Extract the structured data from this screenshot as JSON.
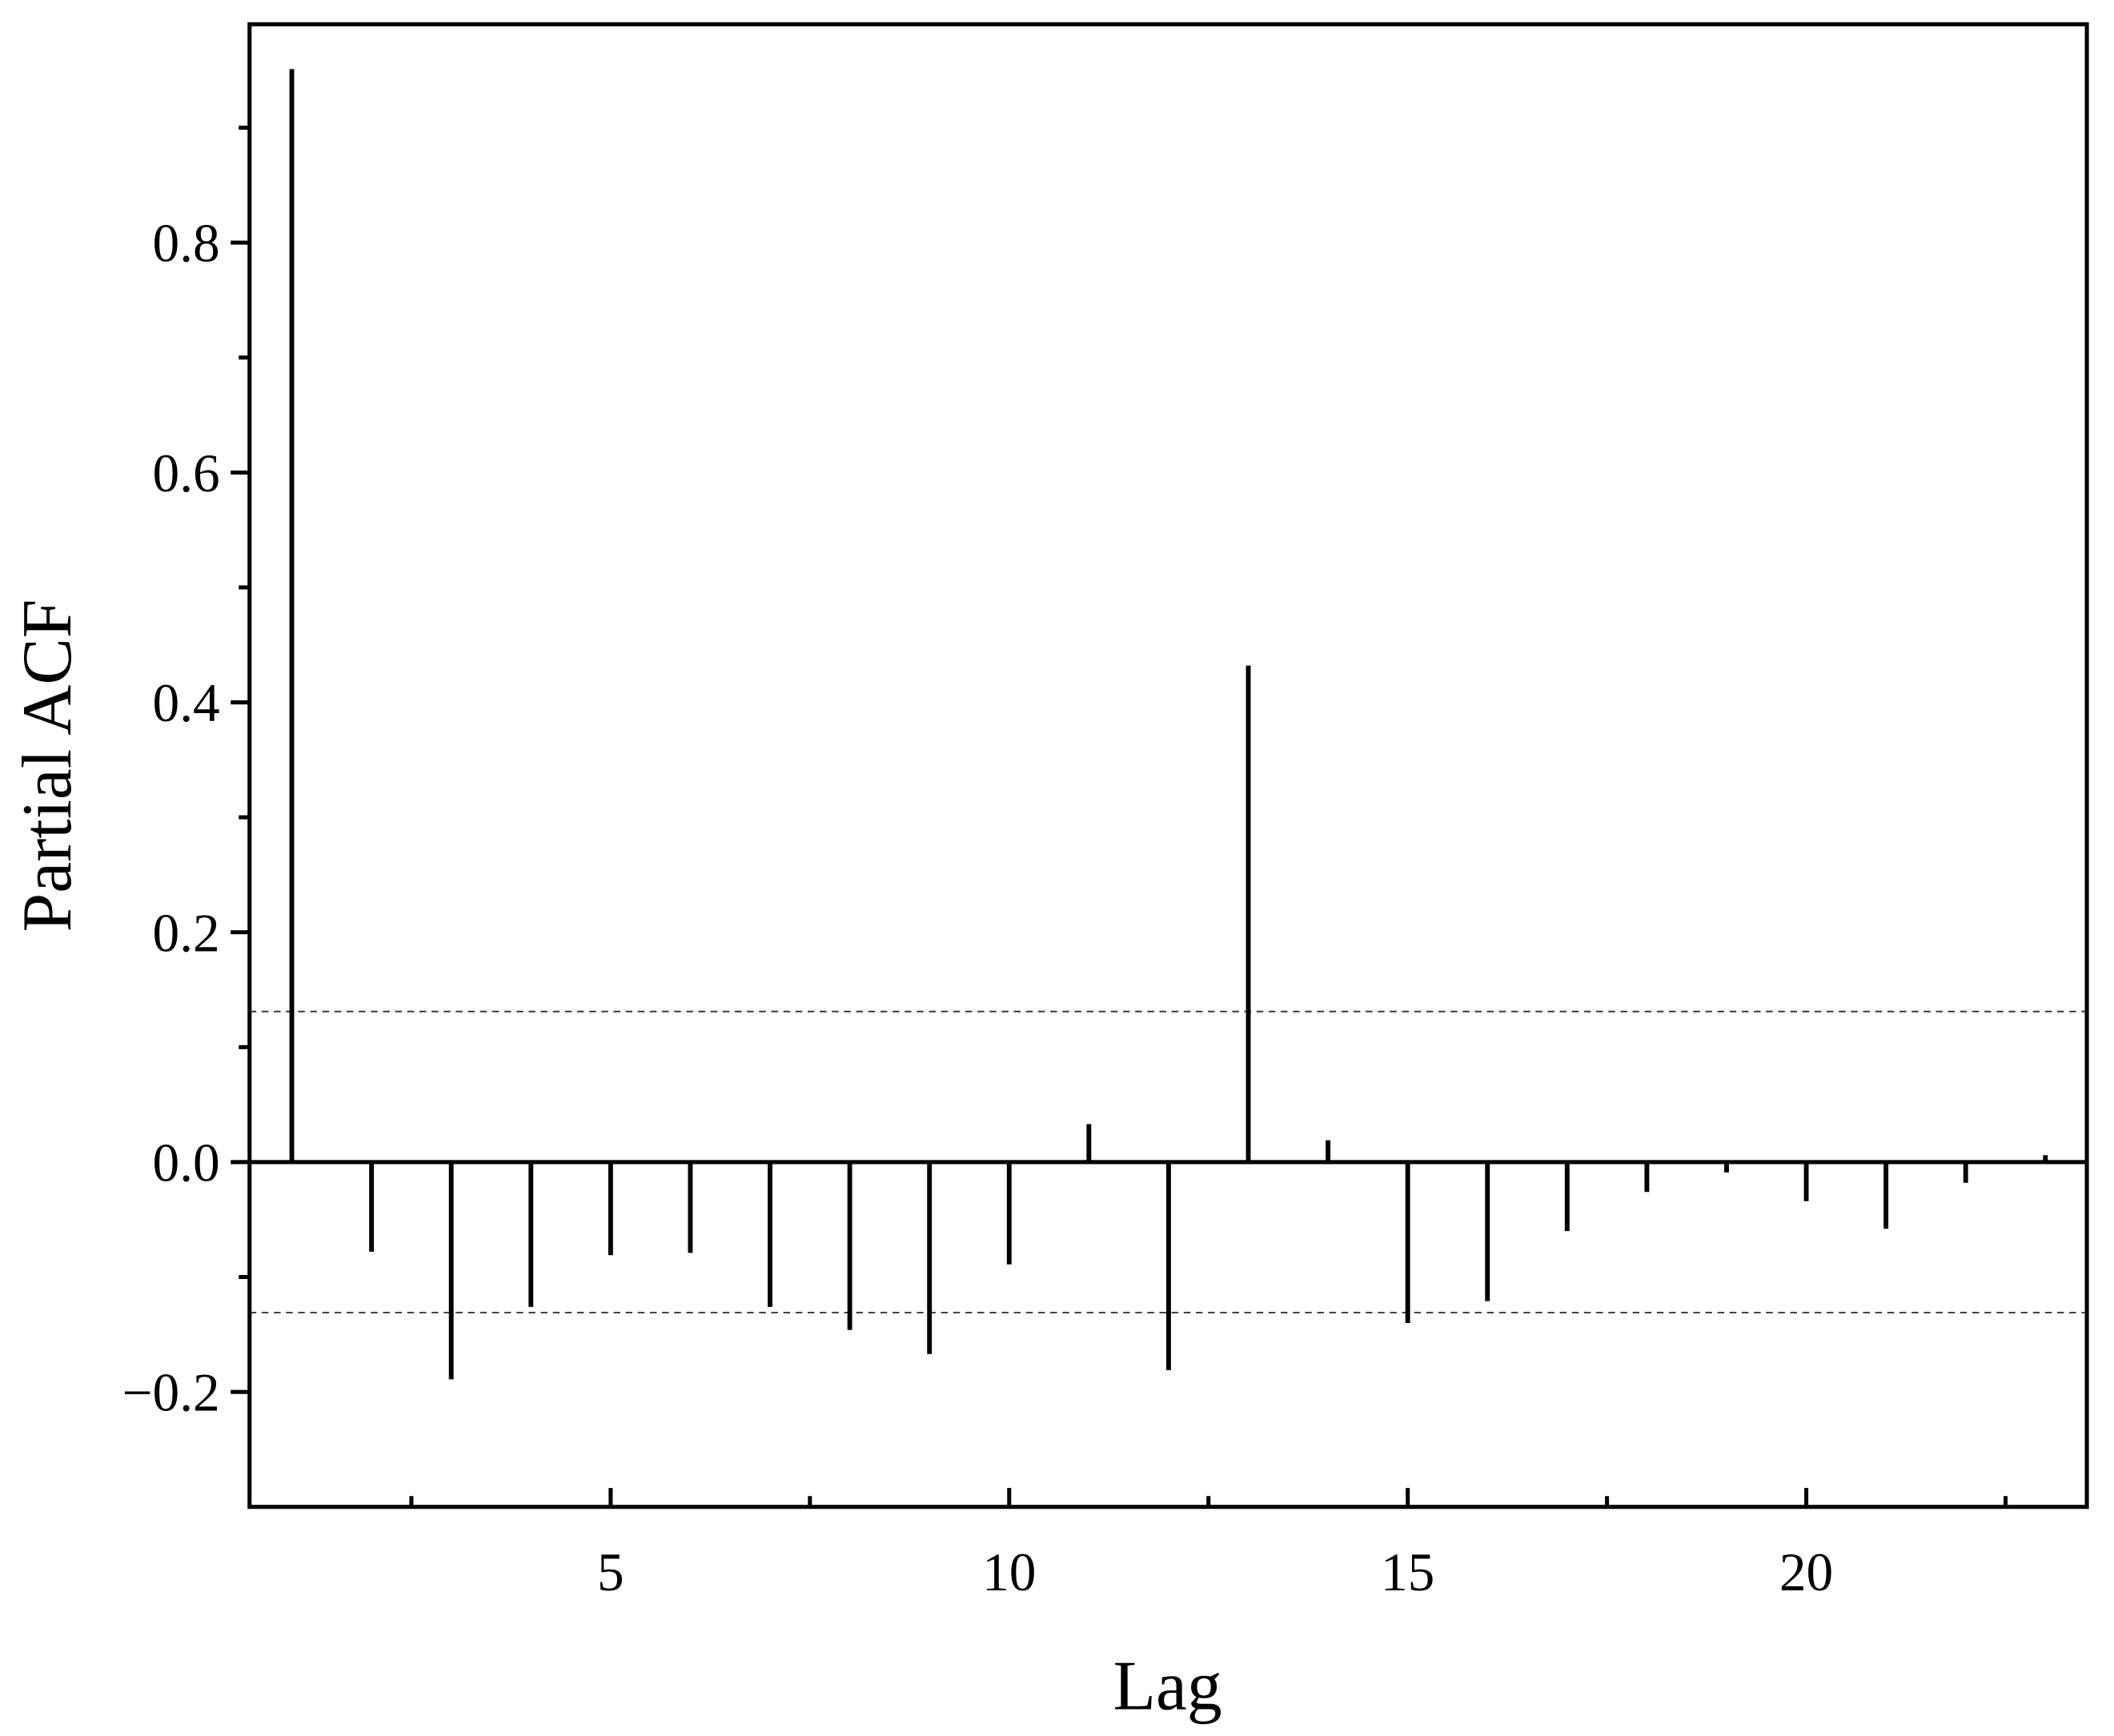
{
  "chart_data": {
    "type": "stem",
    "x_label": "Lag",
    "y_label": "Partial ACF",
    "x": [
      1,
      2,
      3,
      4,
      5,
      6,
      7,
      8,
      9,
      10,
      11,
      12,
      13,
      14,
      15,
      16,
      17,
      18,
      19,
      20,
      21,
      22,
      23
    ],
    "values": [
      0.951,
      -0.078,
      -0.189,
      -0.126,
      -0.081,
      -0.079,
      -0.126,
      -0.146,
      -0.167,
      -0.089,
      0.033,
      -0.181,
      0.432,
      0.019,
      -0.14,
      -0.121,
      -0.06,
      -0.026,
      -0.009,
      -0.034,
      -0.058,
      -0.018,
      0.006
    ],
    "color": "#000000",
    "confidence_bounds": [
      0.131,
      -0.131
    ],
    "xlim": [
      0.47,
      23.52
    ],
    "ylim": [
      -0.3,
      0.99
    ],
    "xticks": [
      5,
      10,
      15,
      20
    ],
    "xminor_ticks": [
      2.5,
      7.5,
      12.5,
      17.5,
      22.5
    ],
    "yticks": [
      {
        "value": -0.2,
        "label": "−0.2"
      },
      {
        "value": 0,
        "label": "0.0"
      },
      0.2,
      0.4,
      0.6,
      0.8
    ],
    "yminor_ticks": [
      -0.1,
      0.1,
      0.3,
      0.5,
      0.7,
      0.9
    ]
  }
}
